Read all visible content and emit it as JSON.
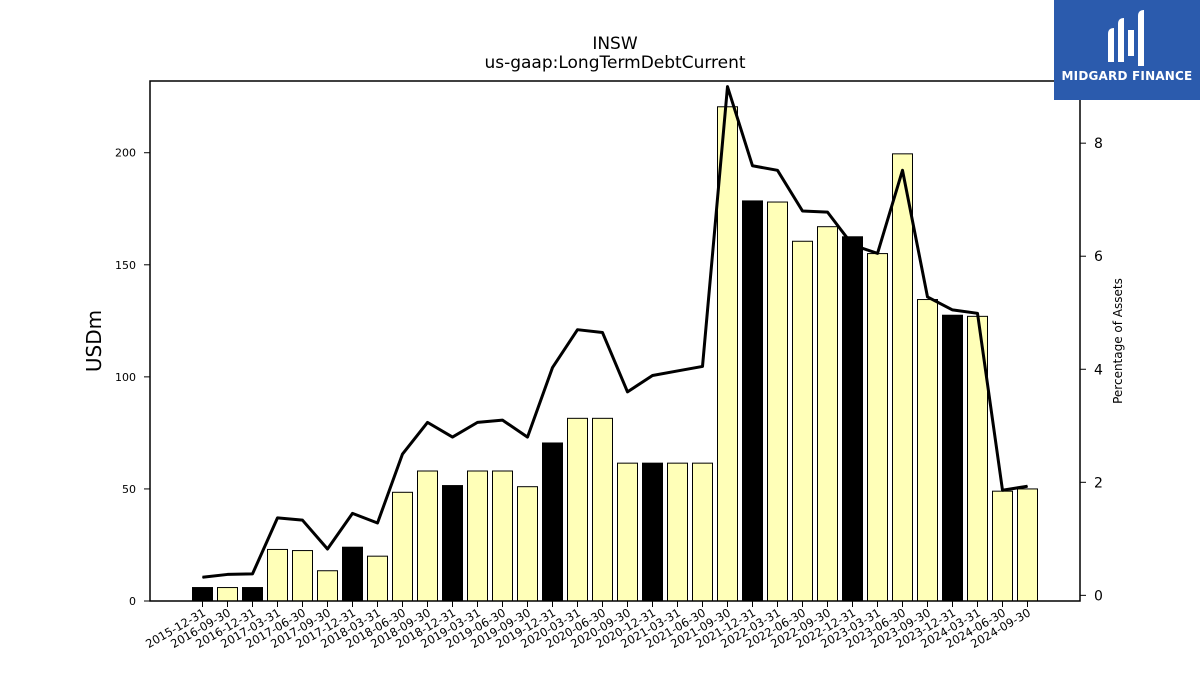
{
  "chart_data": {
    "type": "bar",
    "title": "INSW",
    "subtitle": "us-gaap:LongTermDebtCurrent",
    "ylabel": "USDm",
    "y2label": "Percentage of Assets",
    "ylim": [
      0,
      232
    ],
    "y2lim": [
      -0.1,
      9.1
    ],
    "yticks": [
      0,
      50,
      100,
      150,
      200
    ],
    "y2ticks": [
      0,
      2,
      4,
      6,
      8
    ],
    "categories": [
      "2015-12-31",
      "2016-09-30",
      "2016-12-31",
      "2017-03-31",
      "2017-06-30",
      "2017-09-30",
      "2017-12-31",
      "2018-03-31",
      "2018-06-30",
      "2018-09-30",
      "2018-12-31",
      "2019-03-31",
      "2019-06-30",
      "2019-09-30",
      "2019-12-31",
      "2020-03-31",
      "2020-06-30",
      "2020-09-30",
      "2020-12-31",
      "2021-03-31",
      "2021-06-30",
      "2021-09-30",
      "2021-12-31",
      "2022-03-31",
      "2022-06-30",
      "2022-09-30",
      "2022-12-31",
      "2023-03-31",
      "2023-06-30",
      "2023-09-30",
      "2023-12-31",
      "2024-03-31",
      "2024-06-30",
      "2024-09-30"
    ],
    "series": [
      {
        "type": "bar",
        "values": [
          6,
          6,
          6,
          23,
          22.5,
          13.5,
          24,
          20,
          48.5,
          58,
          51.5,
          58,
          58,
          51,
          70.5,
          81.5,
          81.5,
          61.5,
          61.5,
          61.5,
          61.5,
          220.5,
          178.5,
          178,
          160.5,
          167,
          162.5,
          155,
          199.5,
          134.5,
          127.5,
          127,
          49,
          50
        ],
        "bar_colors": [
          "#000000",
          "#ffffb8",
          "#000000",
          "#ffffb8",
          "#ffffb8",
          "#ffffb8",
          "#000000",
          "#ffffb8",
          "#ffffb8",
          "#ffffb8",
          "#000000",
          "#ffffb8",
          "#ffffb8",
          "#ffffb8",
          "#000000",
          "#ffffb8",
          "#ffffb8",
          "#ffffb8",
          "#000000",
          "#ffffb8",
          "#ffffb8",
          "#ffffb8",
          "#000000",
          "#ffffb8",
          "#ffffb8",
          "#ffffb8",
          "#000000",
          "#ffffb8",
          "#ffffb8",
          "#ffffb8",
          "#000000",
          "#ffffb8",
          "#ffffb8",
          "#ffffb8"
        ]
      },
      {
        "type": "line",
        "axis": "right",
        "values": [
          0.32,
          0.37,
          0.38,
          1.37,
          1.33,
          0.82,
          1.45,
          1.28,
          2.5,
          3.06,
          2.8,
          3.06,
          3.1,
          2.8,
          4.03,
          4.7,
          4.65,
          3.6,
          3.89,
          3.97,
          4.05,
          9.0,
          7.6,
          7.52,
          6.8,
          6.78,
          6.2,
          6.05,
          7.52,
          5.28,
          5.05,
          4.99,
          1.86,
          1.93
        ],
        "color": "#000000"
      }
    ],
    "grid": false
  },
  "logo": {
    "text": "MIDGARD FINANCE",
    "color": "#2b5bad"
  }
}
